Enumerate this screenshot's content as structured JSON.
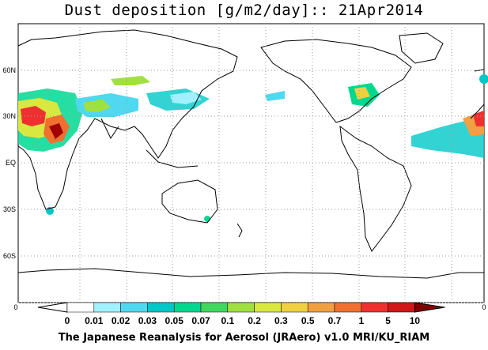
{
  "title": "Dust deposition [g/m2/day]:: 21Apr2014",
  "footer": "The Japanese Reanalysis for Aerosol (JRAero) v1.0 MRI/KU_RIAM",
  "map": {
    "projection": "equirectangular, 180°W–180°E centred on 180° dateline shift",
    "lat_labels": [
      "60N",
      "30N",
      "EQ",
      "30S",
      "60S"
    ],
    "lat_values": [
      60,
      30,
      0,
      -30,
      -60
    ],
    "grid": "dotted",
    "axis_zero_left": "0",
    "axis_zero_right": "0"
  },
  "legend": {
    "labels": [
      "0",
      "0.01",
      "0.02",
      "0.03",
      "0.05",
      "0.07",
      "0.1",
      "0.2",
      "0.3",
      "0.5",
      "0.7",
      "1",
      "5",
      "10"
    ],
    "colors": [
      "#ffffff",
      "#a0f0ff",
      "#50d8f0",
      "#00c8c8",
      "#00d890",
      "#40d860",
      "#a0e040",
      "#d8e840",
      "#f0d040",
      "#f0a040",
      "#f07030",
      "#f03030",
      "#d01818",
      "#a00000",
      "#800000"
    ]
  },
  "colors": {
    "coast": "#000000",
    "grid": "#9a9a9a"
  }
}
